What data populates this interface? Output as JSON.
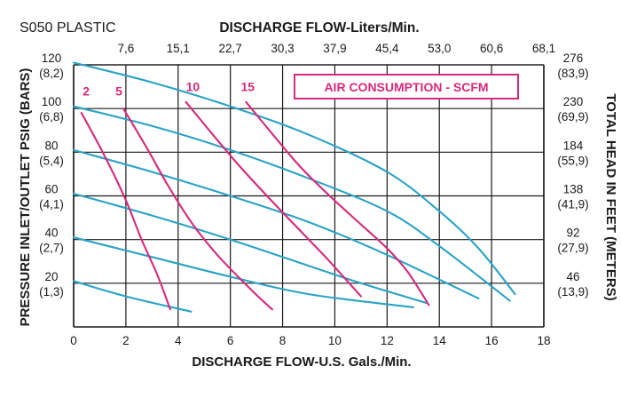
{
  "model_label": "S050 PLASTIC",
  "colors": {
    "perf": "#2aa3c6",
    "air": "#d6297a",
    "grid": "#1a1a1a"
  },
  "chart_data": {
    "type": "line",
    "title": "DISCHARGE FLOW-Liters/Min.",
    "xlabel": "DISCHARGE FLOW-U.S. Gals./Min.",
    "ylabel": "PRESSURE INLET/OUTLET PSIG (BARS)",
    "y2label": "TOTAL HEAD IN FEET (METERS)",
    "legend_box": "AIR CONSUMPTION - SCFM",
    "xlim": [
      0,
      18
    ],
    "ylim": [
      0,
      120
    ],
    "grid": true,
    "x_ticks": [
      "0",
      "2",
      "4",
      "6",
      "8",
      "10",
      "12",
      "14",
      "16",
      "18"
    ],
    "x_top_ticks": [
      "7,6",
      "15,1",
      "22,7",
      "30,3",
      "37,9",
      "45,4",
      "53,0",
      "60,6",
      "68,1"
    ],
    "y_ticks": [
      {
        "value": 120,
        "psig": "120",
        "bars": "(8,2)",
        "feet": "276",
        "meters": "(83,9)"
      },
      {
        "value": 100,
        "psig": "100",
        "bars": "(6,8)",
        "feet": "230",
        "meters": "(69,9)"
      },
      {
        "value": 80,
        "psig": "80",
        "bars": "(5,4)",
        "feet": "184",
        "meters": "(55,9)"
      },
      {
        "value": 60,
        "psig": "60",
        "bars": "(4,1)",
        "feet": "138",
        "meters": "(41,9)"
      },
      {
        "value": 40,
        "psig": "40",
        "bars": "(2,7)",
        "feet": "92",
        "meters": "(27,9)"
      },
      {
        "value": 20,
        "psig": "20",
        "bars": "(1,3)",
        "feet": "46",
        "meters": "(13,9)"
      }
    ],
    "performance_series": [
      {
        "name": "120 psig",
        "points": [
          [
            0,
            121
          ],
          [
            3,
            112
          ],
          [
            6,
            101
          ],
          [
            9,
            88
          ],
          [
            12,
            71
          ],
          [
            14,
            53
          ],
          [
            15.5,
            36
          ],
          [
            16.9,
            15
          ]
        ]
      },
      {
        "name": "100 psig",
        "points": [
          [
            0,
            101
          ],
          [
            3,
            92
          ],
          [
            6,
            81
          ],
          [
            9,
            68
          ],
          [
            12,
            53
          ],
          [
            14,
            37
          ],
          [
            16.7,
            12
          ]
        ]
      },
      {
        "name": "80 psig",
        "points": [
          [
            0,
            81
          ],
          [
            3,
            71
          ],
          [
            6,
            60
          ],
          [
            9,
            48
          ],
          [
            12,
            33
          ],
          [
            15.5,
            13
          ]
        ]
      },
      {
        "name": "60 psig",
        "points": [
          [
            0,
            61
          ],
          [
            3,
            51
          ],
          [
            6,
            40
          ],
          [
            9,
            28
          ],
          [
            11,
            20
          ],
          [
            13.5,
            11
          ]
        ]
      },
      {
        "name": "40 psig",
        "points": [
          [
            0,
            41
          ],
          [
            3,
            32
          ],
          [
            6,
            23
          ],
          [
            9,
            15
          ],
          [
            13,
            9
          ]
        ]
      },
      {
        "name": "20 psig",
        "points": [
          [
            0,
            21
          ],
          [
            2,
            14
          ],
          [
            4.5,
            7
          ]
        ]
      }
    ],
    "air_series": [
      {
        "name": "2",
        "label_at": [
          0.35,
          106
        ],
        "points": [
          [
            0.3,
            98
          ],
          [
            1.2,
            78
          ],
          [
            2,
            58
          ],
          [
            2.6,
            40
          ],
          [
            3.2,
            24
          ],
          [
            3.7,
            8
          ]
        ]
      },
      {
        "name": "5",
        "label_at": [
          1.6,
          106
        ],
        "points": [
          [
            1.9,
            100
          ],
          [
            2.8,
            82
          ],
          [
            3.6,
            65
          ],
          [
            4.5,
            48
          ],
          [
            5.5,
            33
          ],
          [
            6.8,
            17
          ],
          [
            7.6,
            8
          ]
        ]
      },
      {
        "name": "10",
        "label_at": [
          4.3,
          108
        ],
        "points": [
          [
            4.3,
            103
          ],
          [
            5.4,
            87
          ],
          [
            6.4,
            73
          ],
          [
            7.4,
            60
          ],
          [
            8.6,
            45
          ],
          [
            9.8,
            30
          ],
          [
            11,
            14
          ]
        ]
      },
      {
        "name": "15",
        "label_at": [
          6.4,
          108
        ],
        "points": [
          [
            6.6,
            103
          ],
          [
            7.7,
            87
          ],
          [
            8.7,
            73
          ],
          [
            9.8,
            60
          ],
          [
            10.9,
            48
          ],
          [
            12,
            36
          ],
          [
            12.8,
            25
          ],
          [
            13.6,
            10
          ]
        ]
      }
    ]
  }
}
